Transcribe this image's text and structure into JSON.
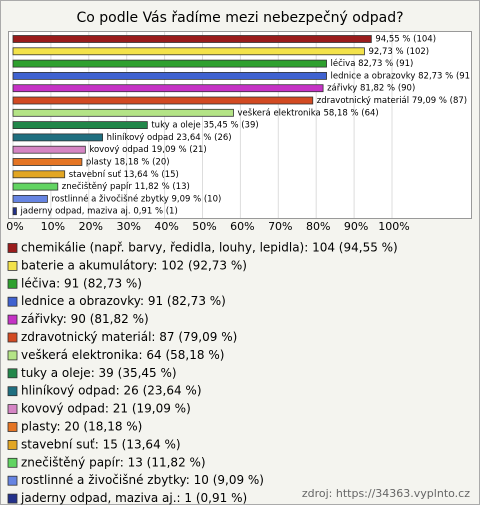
{
  "chart_data": {
    "type": "bar",
    "orientation": "horizontal",
    "title": "Co podle Vás řadíme mezi nebezpečný odpad?",
    "categories": [
      "chemikálie (např. barvy, ředidla, louhy, lepidla): 104 (94,55 %)",
      "baterie a akumulátory: 102 (92,73 %)",
      "léčiva: 91 (82,73 %)",
      "lednice a obrazovky: 91 (82,73 %)",
      "zářivky: 90 (81,82 %)",
      "zdravotnický materiál: 87 (79,09 %)",
      "veškerá elektronika: 64 (58,18 %)",
      "tuky a oleje: 39 (35,45 %)",
      "hliníkový odpad: 26 (23,64 %)",
      "kovový odpad: 21 (19,09 %)",
      "plasty: 20 (18,18 %)",
      "stavební suť: 15 (13,64 %)",
      "znečištěný papír: 13 (11,82 %)",
      "rostlinné a živočišné zbytky: 10 (9,09 %)",
      "jaderny odpad, maziva aj.: 1 (0,91 %)"
    ],
    "values": [
      94.55,
      92.73,
      82.73,
      82.73,
      81.82,
      79.09,
      58.18,
      35.45,
      23.64,
      19.09,
      18.18,
      13.64,
      11.82,
      9.09,
      0.91
    ],
    "value_labels": [
      "94,55 % (104)",
      "92,73 % (102)",
      "léčiva 82,73 % (91)",
      "lednice a obrazovky 82,73 % (91",
      "zářivky 81,82 % (90)",
      "zdravotnický materiál 79,09 % (87)",
      "veškerá elektronika 58,18 % (64)",
      "tuky a oleje 35,45 % (39)",
      "hliníkový odpad 23,64 % (26)",
      "kovový odpad 19,09 % (21)",
      "plasty 18,18 % (20)",
      "stavební suť 13,64 % (15)",
      "znečištěný papír 11,82 % (13)",
      "rostlinné a živočišné zbytky 9,09 % (10)",
      "jaderny odpad, maziva aj. 0,91 % (1)"
    ],
    "colors": [
      "#9a1c1c",
      "#f3e24a",
      "#2ea02e",
      "#3f62d0",
      "#c533c5",
      "#d24a22",
      "#b4e486",
      "#22874a",
      "#1f6f80",
      "#d585c4",
      "#e57524",
      "#e2a623",
      "#62d462",
      "#6684e2",
      "#23318a"
    ],
    "xlim": [
      0,
      100
    ],
    "xticks": [
      {
        "value": 0,
        "label": "0%"
      },
      {
        "value": 10,
        "label": "10%"
      },
      {
        "value": 20,
        "label": "20%"
      },
      {
        "value": 30,
        "label": "30%"
      },
      {
        "value": 40,
        "label": "40%"
      },
      {
        "value": 50,
        "label": "50%"
      },
      {
        "value": 60,
        "label": "60%"
      },
      {
        "value": 70,
        "label": "70%"
      },
      {
        "value": 80,
        "label": "80%"
      },
      {
        "value": 90,
        "label": "90%"
      },
      {
        "value": 100,
        "label": "100%"
      }
    ],
    "grid": true,
    "source": "zdroj: https://34363.vyplnto.cz"
  }
}
